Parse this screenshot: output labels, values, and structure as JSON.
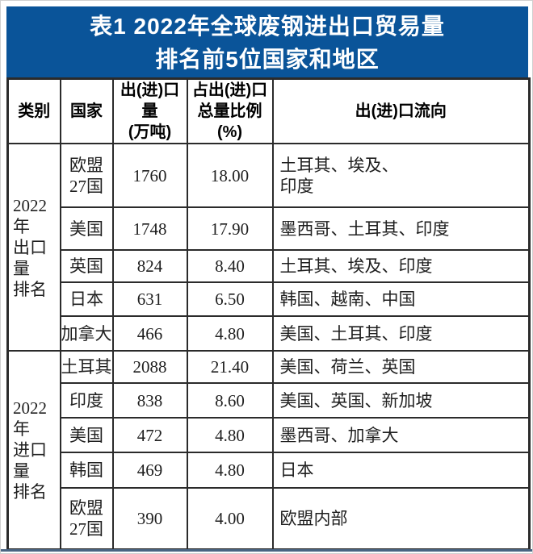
{
  "title": {
    "line1": "表1 2022年全球废钢进出口贸易量",
    "line2": "排名前5位国家和地区"
  },
  "colors": {
    "title_bg": "#0a5499",
    "title_text": "#ffffff",
    "table_border": "#2b2b2b",
    "bottom_rule": "#4a6583"
  },
  "table": {
    "headers": [
      "类别",
      "国家",
      [
        "出(进)口量",
        "(万吨)"
      ],
      [
        "占出(进)口",
        "总量比例(%)"
      ],
      "出(进)口流向"
    ],
    "sections": [
      {
        "category": "2022年出口量排名",
        "category_lines": [
          "2022年",
          "出口量",
          "排名"
        ],
        "rows": [
          {
            "country": [
              "欧盟",
              "27国"
            ],
            "volume": "1760",
            "share": "18.00",
            "flow": [
              "土耳其、埃及、",
              "印度"
            ]
          },
          {
            "country": "美国",
            "volume": "1748",
            "share": "17.90",
            "flow": "墨西哥、土耳其、印度"
          },
          {
            "country": "英国",
            "volume": "824",
            "share": "8.40",
            "flow": "土耳其、埃及、印度"
          },
          {
            "country": "日本",
            "volume": "631",
            "share": "6.50",
            "flow": "韩国、越南、中国"
          },
          {
            "country": "加拿大",
            "volume": "466",
            "share": "4.80",
            "flow": "美国、土耳其、印度"
          }
        ]
      },
      {
        "category": "2022年进口量排名",
        "category_lines": [
          "2022年",
          "进口量",
          "排名"
        ],
        "rows": [
          {
            "country": "土耳其",
            "volume": "2088",
            "share": "21.40",
            "flow": "美国、荷兰、英国"
          },
          {
            "country": "印度",
            "volume": "838",
            "share": "8.60",
            "flow": "美国、英国、新加坡"
          },
          {
            "country": "美国",
            "volume": "472",
            "share": "4.80",
            "flow": "墨西哥、加拿大"
          },
          {
            "country": "韩国",
            "volume": "469",
            "share": "4.80",
            "flow": "日本"
          },
          {
            "country": [
              "欧盟",
              "27国"
            ],
            "volume": "390",
            "share": "4.00",
            "flow": "欧盟内部"
          }
        ]
      }
    ]
  }
}
